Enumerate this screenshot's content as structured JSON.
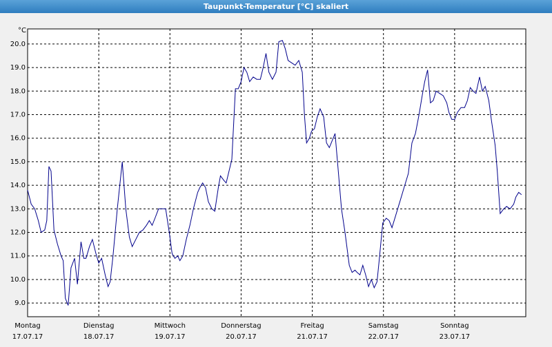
{
  "chart_data": {
    "type": "line",
    "title": "Taupunkt-Temperatur [°C] skaliert",
    "y_label": "°C",
    "color": "#00008b",
    "grid": true,
    "xlim": [
      0,
      7
    ],
    "ylim": [
      8.42,
      20.64
    ],
    "yticks": [
      {
        "value": 9,
        "label": "9.0"
      },
      {
        "value": 10,
        "label": "10.0"
      },
      {
        "value": 11,
        "label": "11.0"
      },
      {
        "value": 12,
        "label": "12.0"
      },
      {
        "value": 13,
        "label": "13.0"
      },
      {
        "value": 14,
        "label": "14.0"
      },
      {
        "value": 15,
        "label": "15.0"
      },
      {
        "value": 16,
        "label": "16.0"
      },
      {
        "value": 17,
        "label": "17.0"
      },
      {
        "value": 18,
        "label": "18.0"
      },
      {
        "value": 19,
        "label": "19.0"
      },
      {
        "value": 20,
        "label": "20.0"
      }
    ],
    "xticks": [
      {
        "value": 0,
        "label": "Montag"
      },
      {
        "value": 1,
        "label": "Dienstag"
      },
      {
        "value": 2,
        "label": "Mittwoch"
      },
      {
        "value": 3,
        "label": "Donnerstag"
      },
      {
        "value": 4,
        "label": "Freitag"
      },
      {
        "value": 5,
        "label": "Samstag"
      },
      {
        "value": 6,
        "label": "Sonntag"
      }
    ],
    "xtick_dates": [
      "17.07.17",
      "18.07.17",
      "19.07.17",
      "20.07.17",
      "21.07.17",
      "22.07.17",
      "23.07.17"
    ],
    "x": [
      0.0,
      0.05,
      0.1,
      0.15,
      0.19,
      0.24,
      0.27,
      0.3,
      0.33,
      0.37,
      0.42,
      0.47,
      0.5,
      0.53,
      0.57,
      0.61,
      0.66,
      0.7,
      0.75,
      0.79,
      0.82,
      0.87,
      0.91,
      0.96,
      1.0,
      1.04,
      1.09,
      1.13,
      1.16,
      1.2,
      1.26,
      1.33,
      1.38,
      1.43,
      1.47,
      1.52,
      1.57,
      1.62,
      1.67,
      1.71,
      1.75,
      1.79,
      1.84,
      1.9,
      1.94,
      1.99,
      2.03,
      2.07,
      2.11,
      2.14,
      2.18,
      2.23,
      2.28,
      2.33,
      2.39,
      2.42,
      2.46,
      2.5,
      2.54,
      2.59,
      2.63,
      2.68,
      2.71,
      2.76,
      2.79,
      2.83,
      2.87,
      2.92,
      2.96,
      3.0,
      3.04,
      3.08,
      3.12,
      3.17,
      3.22,
      3.27,
      3.31,
      3.35,
      3.39,
      3.44,
      3.49,
      3.53,
      3.58,
      3.62,
      3.66,
      3.71,
      3.76,
      3.81,
      3.86,
      3.89,
      3.92,
      3.96,
      3.99,
      4.03,
      4.07,
      4.11,
      4.16,
      4.2,
      4.24,
      4.28,
      4.32,
      4.36,
      4.41,
      4.46,
      4.52,
      4.56,
      4.6,
      4.63,
      4.67,
      4.71,
      4.75,
      4.79,
      4.83,
      4.87,
      4.91,
      4.94,
      4.99,
      5.04,
      5.08,
      5.12,
      5.18,
      5.24,
      5.29,
      5.35,
      5.4,
      5.45,
      5.5,
      5.55,
      5.58,
      5.62,
      5.66,
      5.7,
      5.74,
      5.79,
      5.84,
      5.89,
      5.92,
      5.96,
      6.0,
      6.04,
      6.09,
      6.14,
      6.18,
      6.22,
      6.26,
      6.3,
      6.35,
      6.39,
      6.43,
      6.48,
      6.52,
      6.57,
      6.6,
      6.64,
      6.69,
      6.73,
      6.78,
      6.83,
      6.86,
      6.9,
      6.94
    ],
    "values": [
      13.8,
      13.2,
      13.0,
      12.5,
      12.0,
      12.1,
      12.5,
      14.8,
      14.6,
      12.1,
      11.5,
      11.0,
      10.8,
      9.2,
      8.9,
      10.5,
      10.9,
      9.8,
      11.6,
      10.9,
      10.9,
      11.4,
      11.7,
      11.1,
      10.7,
      10.9,
      10.2,
      9.7,
      9.9,
      11.0,
      13.0,
      15.0,
      13.0,
      11.8,
      11.4,
      11.7,
      12.0,
      12.1,
      12.3,
      12.5,
      12.3,
      12.6,
      13.0,
      13.0,
      13.0,
      12.0,
      11.1,
      10.9,
      11.0,
      10.8,
      11.0,
      11.7,
      12.3,
      13.0,
      13.7,
      13.9,
      14.1,
      13.9,
      13.3,
      13.0,
      12.9,
      13.9,
      14.4,
      14.2,
      14.1,
      14.6,
      15.1,
      18.1,
      18.1,
      18.4,
      19.0,
      18.8,
      18.4,
      18.6,
      18.5,
      18.5,
      19.0,
      19.6,
      18.8,
      18.5,
      18.8,
      20.1,
      20.15,
      19.8,
      19.3,
      19.2,
      19.1,
      19.3,
      18.8,
      17.0,
      15.8,
      16.0,
      16.3,
      16.4,
      16.9,
      17.25,
      16.9,
      15.8,
      15.6,
      15.9,
      16.2,
      14.8,
      13.0,
      12.0,
      10.6,
      10.3,
      10.4,
      10.3,
      10.2,
      10.6,
      10.2,
      9.7,
      10.0,
      9.65,
      9.9,
      10.8,
      12.4,
      12.6,
      12.5,
      12.2,
      12.8,
      13.4,
      13.9,
      14.5,
      15.8,
      16.2,
      17.0,
      17.9,
      18.4,
      18.9,
      17.5,
      17.6,
      18.0,
      17.9,
      17.8,
      17.5,
      17.1,
      16.8,
      16.8,
      17.1,
      17.3,
      17.3,
      17.6,
      18.15,
      18.0,
      17.9,
      18.6,
      18.0,
      18.2,
      17.6,
      16.7,
      15.7,
      14.6,
      12.8,
      13.0,
      13.1,
      13.0,
      13.2,
      13.5,
      13.7,
      13.6
    ]
  }
}
